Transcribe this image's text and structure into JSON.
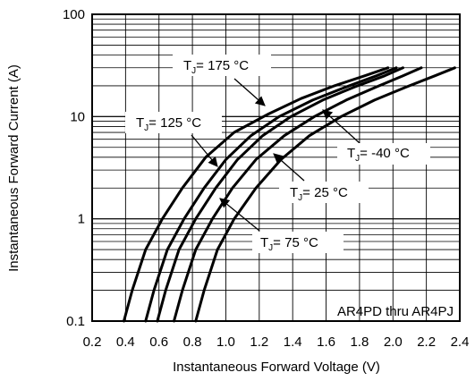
{
  "chart_data": {
    "type": "line",
    "xlabel": "Instantaneous Forward Voltage (V)",
    "ylabel": "Instantaneous Forward Current (A)",
    "xlim": [
      0.2,
      2.4
    ],
    "ylim": [
      0.1,
      100
    ],
    "yscale": "log",
    "grid": true,
    "x_ticks": [
      "0.2",
      "0.4",
      "0.6",
      "0.8",
      "1.0",
      "1.2",
      "1.4",
      "1.6",
      "1.8",
      "2.0",
      "2.2",
      "2.4"
    ],
    "y_ticks": [
      "0.1",
      "1",
      "10",
      "100"
    ],
    "note": "AR4PD thru AR4PJ",
    "series": [
      {
        "name": "T_J = 175 °C",
        "label_main": "T",
        "label_sub": "J",
        "label_rest": "= 175 °C",
        "x": [
          0.39,
          0.44,
          0.52,
          0.62,
          0.74,
          0.88,
          1.05,
          1.25,
          1.45,
          1.65,
          1.83,
          1.97
        ],
        "y": [
          0.1,
          0.2,
          0.5,
          1.0,
          2.0,
          4.0,
          7.0,
          10.5,
          15.0,
          20.0,
          25.0,
          30.0
        ]
      },
      {
        "name": "T_J = 125 °C",
        "label_main": "T",
        "label_sub": "J",
        "label_rest": "= 125 °C",
        "x": [
          0.52,
          0.57,
          0.65,
          0.75,
          0.87,
          1.0,
          1.15,
          1.32,
          1.52,
          1.72,
          1.9,
          2.02
        ],
        "y": [
          0.1,
          0.2,
          0.5,
          1.0,
          2.0,
          3.8,
          6.5,
          10.0,
          14.5,
          19.5,
          25.0,
          30.0
        ]
      },
      {
        "name": "T_J = 75 °C",
        "label_main": "T",
        "label_sub": "J",
        "label_rest": "= 75 °C",
        "x": [
          0.59,
          0.64,
          0.72,
          0.82,
          0.94,
          1.07,
          1.22,
          1.39,
          1.58,
          1.77,
          1.95,
          2.06
        ],
        "y": [
          0.1,
          0.2,
          0.5,
          1.0,
          2.0,
          3.8,
          6.5,
          10.0,
          14.5,
          19.5,
          25.0,
          30.0
        ]
      },
      {
        "name": "T_J = 25 °C",
        "label_main": "T",
        "label_sub": "J",
        "label_rest": "= 25 °C",
        "x": [
          0.69,
          0.74,
          0.82,
          0.92,
          1.04,
          1.18,
          1.35,
          1.53,
          1.72,
          1.9,
          2.06,
          2.17
        ],
        "y": [
          0.1,
          0.2,
          0.5,
          1.0,
          2.0,
          3.8,
          6.5,
          10.0,
          14.5,
          19.5,
          25.0,
          30.0
        ]
      },
      {
        "name": "T_J = -40 °C",
        "label_main": "T",
        "label_sub": "J",
        "label_rest": "= -40 °C",
        "x": [
          0.82,
          0.87,
          0.95,
          1.05,
          1.18,
          1.33,
          1.5,
          1.69,
          1.89,
          2.08,
          2.25,
          2.37
        ],
        "y": [
          0.1,
          0.2,
          0.5,
          1.0,
          2.0,
          3.8,
          6.5,
          10.0,
          14.5,
          19.5,
          25.0,
          30.0
        ]
      }
    ]
  }
}
